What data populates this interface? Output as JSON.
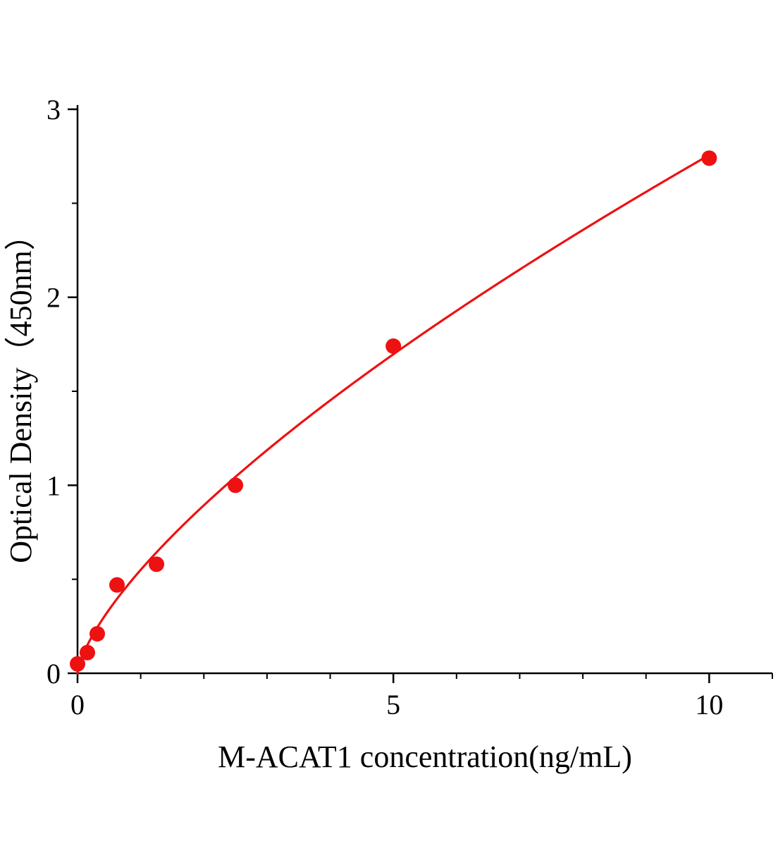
{
  "chart_data": {
    "type": "scatter",
    "xlabel": "M-ACAT1 concentration(ng/mL)",
    "ylabel": "Optical Density（450nm）",
    "x": [
      0,
      0.156,
      0.3125,
      0.625,
      1.25,
      2.5,
      5,
      10
    ],
    "y": [
      0.05,
      0.11,
      0.21,
      0.47,
      0.58,
      1.0,
      1.74,
      2.74
    ],
    "xlim": [
      0,
      11
    ],
    "ylim": [
      0,
      3
    ],
    "x_ticks": {
      "values": [
        0,
        5,
        10
      ],
      "labels": [
        "0",
        "5",
        "10"
      ]
    },
    "y_ticks": {
      "values": [
        0,
        1,
        2,
        3
      ],
      "labels": [
        "0",
        "1",
        "2",
        "3"
      ]
    },
    "x_minor_step": 1,
    "y_minor_step": 0.5,
    "fit_curve": {
      "type": "power",
      "a": 0.55,
      "b": 0.7,
      "x_min": 0,
      "x_max": 10
    },
    "grid": false,
    "legend": "none",
    "marker_radius": 11,
    "colors": {
      "curve": "#ee1111",
      "marker": "#ee1111",
      "axis": "#000000",
      "text": "#000000",
      "background": "#ffffff"
    }
  }
}
